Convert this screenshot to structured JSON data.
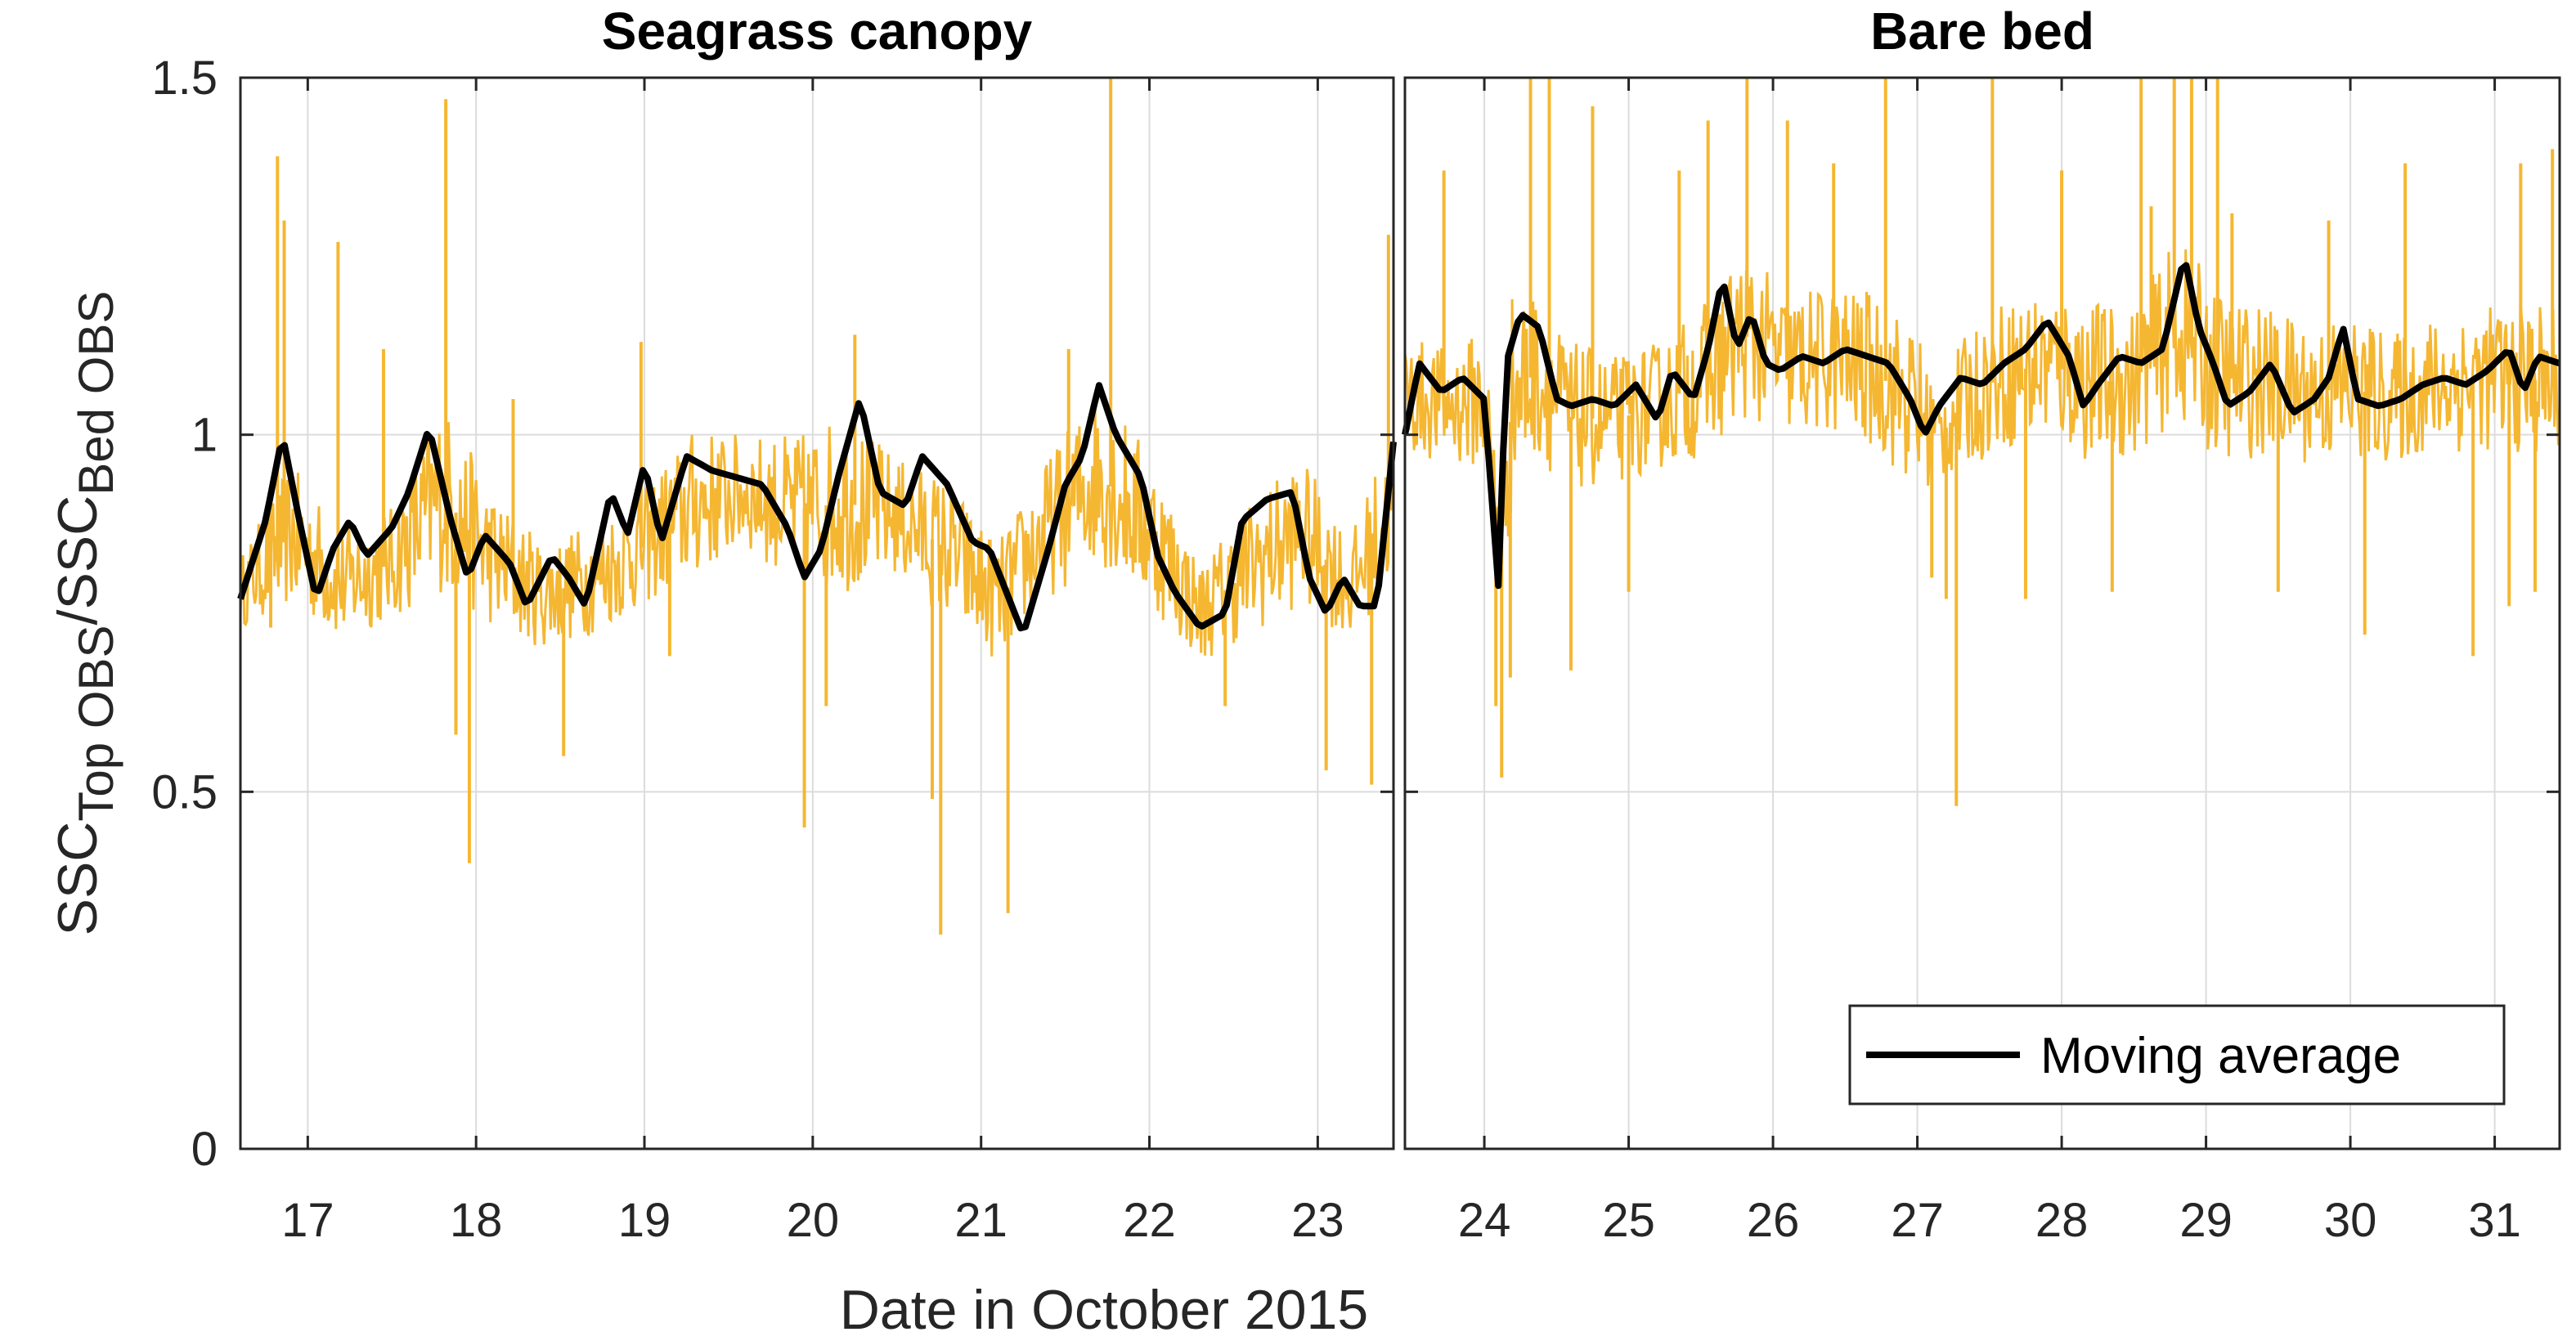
{
  "colors": {
    "raw": "#F5B731",
    "average": "#000000",
    "grid": "#DCDCDC",
    "axis": "#262626"
  },
  "chart_data": [
    {
      "type": "line",
      "title": "Seagrass canopy",
      "ylabel": {
        "main": "SSC",
        "sub1": "Top OBS",
        "sep": "/SSC",
        "sub2": "Bed OBS"
      },
      "xlabel": "Date in October 2015",
      "xlim": [
        16.6,
        23.45
      ],
      "ylim": [
        0,
        1.5
      ],
      "xticks": [
        17,
        18,
        19,
        20,
        21,
        22,
        23
      ],
      "xtick_labels": [
        "17",
        "18",
        "19",
        "20",
        "21",
        "22",
        "23"
      ],
      "yticks": [
        0,
        0.5,
        1,
        1.5
      ],
      "ytick_labels": [
        "0",
        "0.5",
        "1",
        "1.5"
      ],
      "grid": true,
      "raw_band": {
        "x": [
          16.6,
          16.9,
          17.2,
          17.5,
          17.8,
          18.1,
          18.4,
          18.7,
          19.0,
          19.3,
          19.6,
          19.9,
          20.2,
          20.5,
          20.8,
          21.1,
          21.4,
          21.7,
          22.0,
          22.3,
          22.6,
          22.9,
          23.2,
          23.45
        ],
        "low": [
          0.73,
          0.76,
          0.71,
          0.74,
          0.78,
          0.73,
          0.7,
          0.72,
          0.76,
          0.8,
          0.84,
          0.79,
          0.78,
          0.8,
          0.74,
          0.68,
          0.77,
          0.82,
          0.76,
          0.68,
          0.72,
          0.76,
          0.71,
          0.8
        ],
        "high": [
          0.83,
          0.96,
          0.87,
          0.9,
          1.05,
          0.92,
          0.85,
          0.88,
          0.93,
          1.01,
          1.0,
          1.0,
          1.03,
          0.97,
          0.94,
          0.85,
          0.97,
          1.07,
          0.98,
          0.82,
          0.91,
          0.97,
          0.86,
          1.02
        ]
      },
      "raw_spikes": [
        {
          "x": 16.82,
          "y": 1.39
        },
        {
          "x": 16.86,
          "y": 1.3
        },
        {
          "x": 16.78,
          "y": 0.73
        },
        {
          "x": 17.18,
          "y": 1.27
        },
        {
          "x": 17.45,
          "y": 1.12
        },
        {
          "x": 17.82,
          "y": 1.47
        },
        {
          "x": 17.88,
          "y": 0.58
        },
        {
          "x": 17.96,
          "y": 0.4
        },
        {
          "x": 18.22,
          "y": 1.05
        },
        {
          "x": 18.52,
          "y": 0.55
        },
        {
          "x": 18.98,
          "y": 1.13
        },
        {
          "x": 19.15,
          "y": 0.69
        },
        {
          "x": 19.95,
          "y": 0.45
        },
        {
          "x": 20.08,
          "y": 0.62
        },
        {
          "x": 20.25,
          "y": 1.14
        },
        {
          "x": 20.71,
          "y": 0.49
        },
        {
          "x": 20.76,
          "y": 0.3
        },
        {
          "x": 21.16,
          "y": 0.33
        },
        {
          "x": 21.52,
          "y": 1.12
        },
        {
          "x": 21.77,
          "y": 1.5
        },
        {
          "x": 22.45,
          "y": 0.62
        },
        {
          "x": 23.05,
          "y": 0.53
        },
        {
          "x": 23.32,
          "y": 0.51
        },
        {
          "x": 23.42,
          "y": 1.28
        }
      ],
      "moving_average": {
        "name": "Moving average",
        "x": [
          16.6,
          16.75,
          16.85,
          16.95,
          17.05,
          17.15,
          17.25,
          17.35,
          17.5,
          17.6,
          17.72,
          17.85,
          17.95,
          18.05,
          18.2,
          18.3,
          18.45,
          18.55,
          18.65,
          18.8,
          18.9,
          19.0,
          19.1,
          19.25,
          19.4,
          19.55,
          19.7,
          19.85,
          19.95,
          20.05,
          20.15,
          20.28,
          20.4,
          20.55,
          20.65,
          20.8,
          20.95,
          21.05,
          21.15,
          21.25,
          21.4,
          21.5,
          21.6,
          21.7,
          21.8,
          21.95,
          22.05,
          22.15,
          22.3,
          22.45,
          22.55,
          22.7,
          22.85,
          22.95,
          23.05,
          23.15,
          23.25,
          23.35,
          23.45
        ],
        "y": [
          0.77,
          0.88,
          1.0,
          0.88,
          0.77,
          0.84,
          0.88,
          0.83,
          0.87,
          0.92,
          1.01,
          0.88,
          0.8,
          0.86,
          0.82,
          0.76,
          0.83,
          0.8,
          0.76,
          0.92,
          0.86,
          0.96,
          0.85,
          0.97,
          0.95,
          0.94,
          0.93,
          0.87,
          0.8,
          0.84,
          0.94,
          1.05,
          0.92,
          0.9,
          0.97,
          0.93,
          0.85,
          0.84,
          0.78,
          0.72,
          0.84,
          0.93,
          0.97,
          1.07,
          1.0,
          0.94,
          0.83,
          0.78,
          0.73,
          0.75,
          0.88,
          0.91,
          0.92,
          0.8,
          0.75,
          0.8,
          0.76,
          0.76,
          0.99
        ]
      }
    },
    {
      "type": "line",
      "title": "Bare bed",
      "xlim": [
        23.45,
        31.45
      ],
      "ylim": [
        0,
        1.5
      ],
      "xticks": [
        24,
        25,
        26,
        27,
        28,
        29,
        30,
        31
      ],
      "xtick_labels": [
        "24",
        "25",
        "26",
        "27",
        "28",
        "29",
        "30",
        "31"
      ],
      "yticks": [
        0,
        0.5,
        1,
        1.5
      ],
      "grid": true,
      "legend": {
        "position": "bottom-right",
        "entries": [
          "Moving average"
        ]
      },
      "raw_band": {
        "x": [
          23.45,
          23.75,
          24.0,
          24.1,
          24.2,
          24.35,
          24.6,
          24.9,
          25.2,
          25.5,
          25.8,
          26.1,
          26.4,
          26.7,
          27.0,
          27.15,
          27.3,
          27.6,
          27.9,
          28.2,
          28.5,
          28.8,
          29.1,
          29.4,
          29.7,
          30.0,
          30.3,
          30.6,
          30.9,
          31.2,
          31.45
        ],
        "low": [
          0.97,
          0.96,
          0.95,
          0.75,
          0.9,
          0.97,
          0.92,
          0.93,
          0.95,
          0.97,
          1.02,
          1.0,
          1.0,
          0.98,
          0.92,
          0.92,
          0.95,
          0.98,
          0.99,
          0.96,
          0.97,
          1.02,
          0.96,
          0.97,
          0.96,
          0.96,
          0.96,
          0.97,
          0.98,
          0.97,
          0.96
        ],
        "high": [
          1.14,
          1.12,
          1.15,
          0.95,
          1.22,
          1.2,
          1.13,
          1.11,
          1.13,
          1.18,
          1.26,
          1.2,
          1.21,
          1.2,
          1.15,
          1.07,
          1.13,
          1.19,
          1.21,
          1.19,
          1.18,
          1.28,
          1.2,
          1.18,
          1.16,
          1.17,
          1.14,
          1.17,
          1.18,
          1.19,
          1.18
        ]
      },
      "raw_spikes": [
        {
          "x": 23.72,
          "y": 1.37
        },
        {
          "x": 24.08,
          "y": 0.62
        },
        {
          "x": 24.12,
          "y": 0.52
        },
        {
          "x": 24.18,
          "y": 0.66
        },
        {
          "x": 24.32,
          "y": 1.5
        },
        {
          "x": 24.45,
          "y": 1.5
        },
        {
          "x": 24.6,
          "y": 0.67
        },
        {
          "x": 24.75,
          "y": 1.46
        },
        {
          "x": 25.0,
          "y": 0.78
        },
        {
          "x": 25.35,
          "y": 1.37
        },
        {
          "x": 25.55,
          "y": 1.44
        },
        {
          "x": 25.82,
          "y": 1.5
        },
        {
          "x": 26.1,
          "y": 1.44
        },
        {
          "x": 26.42,
          "y": 1.38
        },
        {
          "x": 26.78,
          "y": 1.5
        },
        {
          "x": 27.1,
          "y": 0.8
        },
        {
          "x": 27.2,
          "y": 0.77
        },
        {
          "x": 27.27,
          "y": 0.48
        },
        {
          "x": 27.52,
          "y": 1.5
        },
        {
          "x": 27.75,
          "y": 0.77
        },
        {
          "x": 28.0,
          "y": 1.37
        },
        {
          "x": 28.35,
          "y": 0.78
        },
        {
          "x": 28.55,
          "y": 1.5
        },
        {
          "x": 28.62,
          "y": 1.32
        },
        {
          "x": 28.78,
          "y": 1.5
        },
        {
          "x": 28.9,
          "y": 1.5
        },
        {
          "x": 29.08,
          "y": 1.5
        },
        {
          "x": 29.18,
          "y": 1.31
        },
        {
          "x": 29.5,
          "y": 0.78
        },
        {
          "x": 29.85,
          "y": 1.3
        },
        {
          "x": 30.1,
          "y": 0.72
        },
        {
          "x": 30.38,
          "y": 1.38
        },
        {
          "x": 30.85,
          "y": 0.69
        },
        {
          "x": 31.1,
          "y": 0.76
        },
        {
          "x": 31.18,
          "y": 1.38
        },
        {
          "x": 31.28,
          "y": 0.78
        },
        {
          "x": 31.4,
          "y": 1.4
        }
      ],
      "moving_average": {
        "name": "Moving average",
        "x": [
          23.45,
          23.55,
          23.7,
          23.85,
          24.0,
          24.1,
          24.15,
          24.25,
          24.38,
          24.5,
          24.6,
          24.75,
          24.9,
          25.05,
          25.2,
          25.3,
          25.45,
          25.55,
          25.65,
          25.75,
          25.85,
          25.95,
          26.05,
          26.2,
          26.35,
          26.5,
          26.65,
          26.8,
          26.95,
          27.05,
          27.15,
          27.3,
          27.45,
          27.6,
          27.75,
          27.9,
          28.05,
          28.15,
          28.25,
          28.4,
          28.55,
          28.7,
          28.85,
          28.95,
          29.05,
          29.15,
          29.3,
          29.45,
          29.6,
          29.75,
          29.85,
          29.95,
          30.05,
          30.2,
          30.35,
          30.5,
          30.65,
          30.8,
          30.95,
          31.1,
          31.2,
          31.3,
          31.45
        ],
        "y": [
          1.0,
          1.1,
          1.06,
          1.08,
          1.05,
          0.78,
          1.1,
          1.17,
          1.15,
          1.05,
          1.04,
          1.05,
          1.04,
          1.07,
          1.02,
          1.09,
          1.05,
          1.12,
          1.22,
          1.12,
          1.17,
          1.1,
          1.09,
          1.11,
          1.1,
          1.12,
          1.11,
          1.1,
          1.05,
          1.0,
          1.04,
          1.08,
          1.07,
          1.1,
          1.12,
          1.16,
          1.11,
          1.04,
          1.07,
          1.11,
          1.1,
          1.12,
          1.25,
          1.15,
          1.1,
          1.04,
          1.06,
          1.1,
          1.03,
          1.05,
          1.08,
          1.15,
          1.05,
          1.04,
          1.05,
          1.07,
          1.08,
          1.07,
          1.09,
          1.12,
          1.06,
          1.11,
          1.1
        ]
      }
    }
  ]
}
